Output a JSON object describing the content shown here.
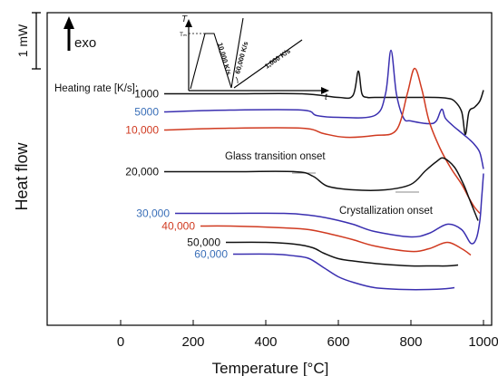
{
  "chart_data": {
    "type": "line",
    "xlabel": "Temperature [°C]",
    "ylabel": "Heat flow",
    "xlim": [
      -180,
      1020
    ],
    "x_ticks": [
      0,
      200,
      400,
      600,
      800,
      1000
    ],
    "tick_labels": [
      "0",
      "200",
      "400",
      "600",
      "800",
      "1000"
    ],
    "scale_bar": "1 mW",
    "exo_label": "exo",
    "legend_title": "Heating rate [K/s]:",
    "y_axis_note": "curves vertically offset; y in relative heat-flow units (up = exo)",
    "series": [
      {
        "name": "1000",
        "color": "#111111",
        "x": [
          120,
          300,
          500,
          600,
          640,
          655,
          665,
          680,
          700,
          800,
          860,
          900,
          920,
          940,
          950,
          960,
          975,
          990,
          1000
        ],
        "y": [
          20.0,
          20.0,
          20.0,
          19.6,
          19.8,
          22.5,
          20.0,
          19.6,
          19.6,
          19.6,
          19.6,
          19.5,
          19.2,
          18.0,
          15.5,
          18.0,
          18.5,
          19.2,
          20.4
        ]
      },
      {
        "name": "5000",
        "color": "#3a2fb0",
        "x": [
          120,
          300,
          500,
          540,
          600,
          700,
          730,
          745,
          760,
          780,
          800,
          850,
          870,
          885,
          895,
          915,
          930,
          945,
          960,
          975,
          990,
          1000
        ],
        "y": [
          18.0,
          18.2,
          18.2,
          17.6,
          17.4,
          17.6,
          20.0,
          24.8,
          20.0,
          17.3,
          17.0,
          16.7,
          17.0,
          18.3,
          17.3,
          16.5,
          16.0,
          15.5,
          15.0,
          14.4,
          13.5,
          11.7
        ]
      },
      {
        "name": "10,000",
        "color": "#d03a20",
        "x": [
          120,
          300,
          500,
          560,
          620,
          700,
          760,
          790,
          810,
          830,
          850,
          880,
          910,
          940,
          960,
          975,
          990
        ],
        "y": [
          16.0,
          16.2,
          16.2,
          15.6,
          15.2,
          15.4,
          16.0,
          20.0,
          22.8,
          20.5,
          17.0,
          14.0,
          11.8,
          10.0,
          8.5,
          7.5,
          6.8
        ]
      },
      {
        "name": "20,000",
        "color": "#111111",
        "x": [
          120,
          300,
          480,
          530,
          570,
          640,
          730,
          800,
          840,
          870,
          890,
          920,
          945,
          960,
          975,
          985
        ],
        "y": [
          11.4,
          11.4,
          11.4,
          10.9,
          9.8,
          9.4,
          9.4,
          10.0,
          11.5,
          12.5,
          12.9,
          11.9,
          10.0,
          8.5,
          7.0,
          6.0
        ]
      },
      {
        "name": "30,000",
        "color": "#3a2fb0",
        "x": [
          150,
          300,
          450,
          520,
          580,
          640,
          700,
          800,
          850,
          900,
          940,
          965,
          980,
          990,
          995,
          1000
        ],
        "y": [
          6.8,
          6.8,
          6.8,
          6.6,
          6.2,
          5.6,
          4.8,
          4.2,
          4.6,
          5.6,
          5.0,
          3.5,
          4.0,
          6.0,
          8.5,
          11.2
        ]
      },
      {
        "name": "40,000",
        "color": "#d03a20",
        "x": [
          220,
          300,
          450,
          520,
          580,
          640,
          700,
          800,
          850,
          900,
          940,
          965
        ],
        "y": [
          5.4,
          5.4,
          5.2,
          5.0,
          4.5,
          3.9,
          3.2,
          2.6,
          2.9,
          3.6,
          2.9,
          2.2
        ]
      },
      {
        "name": "50,000",
        "color": "#111111",
        "x": [
          290,
          400,
          480,
          530,
          560,
          600,
          650,
          720,
          800,
          860,
          900,
          930
        ],
        "y": [
          3.6,
          3.6,
          3.4,
          3.0,
          2.4,
          1.8,
          1.5,
          1.2,
          1.0,
          1.0,
          1.0,
          1.1
        ]
      },
      {
        "name": "60,000",
        "color": "#3a2fb0",
        "x": [
          310,
          420,
          480,
          520,
          560,
          600,
          640,
          700,
          780,
          850,
          900,
          920
        ],
        "y": [
          2.3,
          2.3,
          2.1,
          1.8,
          0.8,
          -0.2,
          -0.8,
          -1.4,
          -1.6,
          -1.6,
          -1.5,
          -1.4
        ]
      }
    ],
    "annotations": [
      {
        "text": "Glass transition onset"
      },
      {
        "text": "Crystallization onset"
      }
    ],
    "inset": {
      "y_label": "T",
      "x_label": "t",
      "t_label": "Tₘ",
      "rate_labels": [
        "10,000 K/s",
        "60,000 K/s",
        "1,000 K/s"
      ]
    }
  }
}
